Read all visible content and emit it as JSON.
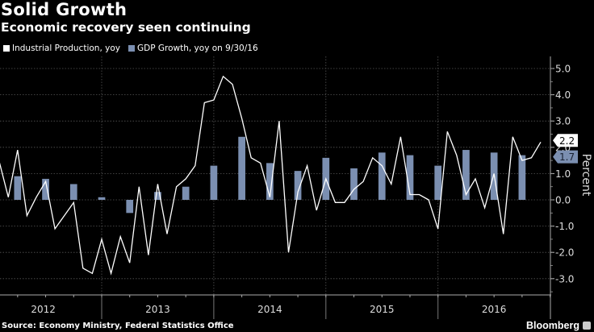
{
  "chart_data": {
    "type": "bar+line",
    "title": "Solid Growth",
    "subtitle": "Economic recovery seen continuing",
    "ylabel": "Percent",
    "ylim": [
      -3.5,
      5.3
    ],
    "yticks": [
      "5.0",
      "4.0",
      "3.0",
      "2.0",
      "1.0",
      "0.0",
      "-1.0",
      "-2.0",
      "-3.0"
    ],
    "xticks": [
      "2012",
      "2013",
      "2014",
      "2015",
      "2016"
    ],
    "grid": true,
    "legend_position": "top-left",
    "series": [
      {
        "name": "Industrial Production, yoy",
        "kind": "line",
        "color": "#ffffff",
        "x": [
          "2012-01",
          "2012-02",
          "2012-03",
          "2012-04",
          "2012-05",
          "2012-06",
          "2012-07",
          "2012-08",
          "2012-09",
          "2012-10",
          "2012-11",
          "2012-12",
          "2013-01",
          "2013-02",
          "2013-03",
          "2013-04",
          "2013-05",
          "2013-06",
          "2013-07",
          "2013-08",
          "2013-09",
          "2013-10",
          "2013-11",
          "2013-12",
          "2014-01",
          "2014-02",
          "2014-03",
          "2014-04",
          "2014-05",
          "2014-06",
          "2014-07",
          "2014-08",
          "2014-09",
          "2014-10",
          "2014-11",
          "2014-12",
          "2015-01",
          "2015-02",
          "2015-03",
          "2015-04",
          "2015-05",
          "2015-06",
          "2015-07",
          "2015-08",
          "2015-09",
          "2015-10",
          "2015-11",
          "2015-12",
          "2016-01",
          "2016-02",
          "2016-03",
          "2016-04",
          "2016-05",
          "2016-06",
          "2016-07",
          "2016-08",
          "2016-09",
          "2016-10",
          "2016-11"
        ],
        "values": [
          1.5,
          0.1,
          1.9,
          -0.6,
          0.1,
          0.7,
          -1.1,
          -0.6,
          -0.1,
          -2.6,
          -2.8,
          -1.5,
          -2.8,
          -1.4,
          -2.4,
          0.5,
          -2.1,
          0.6,
          -1.3,
          0.5,
          0.8,
          1.3,
          3.7,
          3.8,
          4.7,
          4.4,
          3.1,
          1.6,
          1.4,
          0.1,
          3.0,
          -2.0,
          0.3,
          1.3,
          -0.4,
          0.8,
          -0.1,
          -0.1,
          0.4,
          0.7,
          1.6,
          1.3,
          0.6,
          2.4,
          0.2,
          0.2,
          0.0,
          -1.1,
          2.6,
          1.7,
          0.2,
          0.8,
          -0.3,
          1.0,
          -1.3,
          2.4,
          1.5,
          1.6,
          2.2
        ],
        "last_label": "2.2"
      },
      {
        "name": "GDP Growth, yoy on 9/30/16",
        "kind": "bar",
        "color": "#7b8fb1",
        "x": [
          "2012-Q1",
          "2012-Q2",
          "2012-Q3",
          "2012-Q4",
          "2013-Q1",
          "2013-Q2",
          "2013-Q3",
          "2013-Q4",
          "2014-Q1",
          "2014-Q2",
          "2014-Q3",
          "2014-Q4",
          "2015-Q1",
          "2015-Q2",
          "2015-Q3",
          "2015-Q4",
          "2016-Q1",
          "2016-Q2",
          "2016-Q3"
        ],
        "values": [
          0.9,
          0.8,
          0.6,
          0.1,
          -0.5,
          0.3,
          0.5,
          1.3,
          2.4,
          1.4,
          1.1,
          1.6,
          1.2,
          1.8,
          1.7,
          1.3,
          1.9,
          1.8,
          1.7
        ],
        "last_label": "1.7"
      }
    ]
  },
  "source": "Source: Economy Ministry, Federal Statistics Office",
  "brand": "Bloomberg",
  "colors": {
    "background": "#000000",
    "grid": "#555555",
    "bar": "#7b8fb1",
    "line": "#ffffff"
  }
}
